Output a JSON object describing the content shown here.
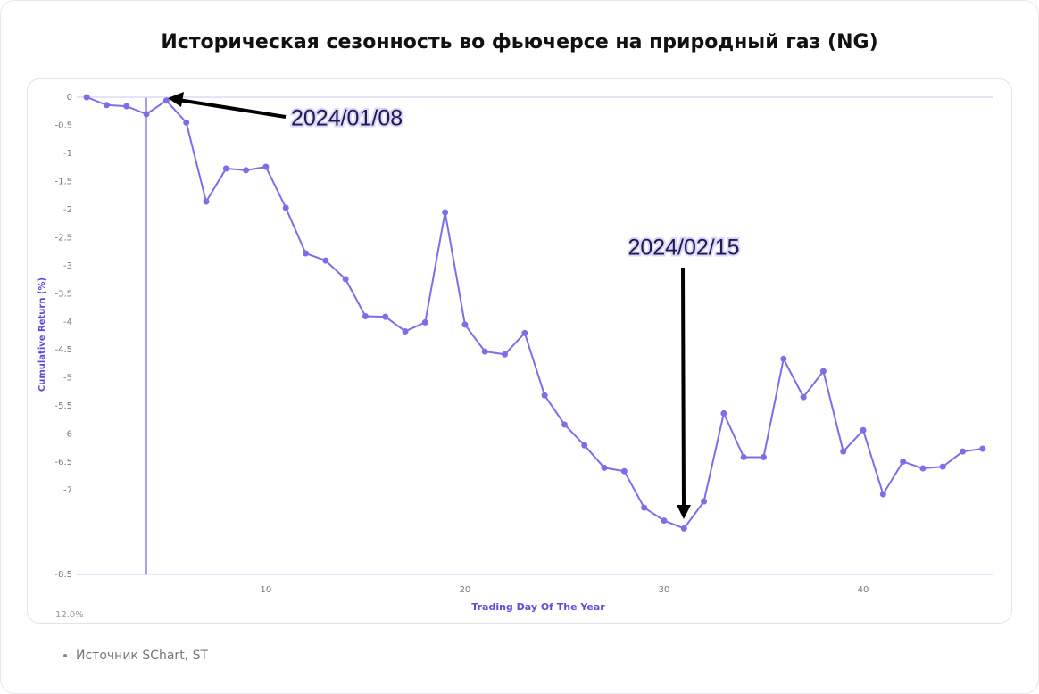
{
  "chart_data": {
    "type": "line",
    "title": "Историческая сезонность во фьючерсе на природный газ (NG)",
    "x_label": "Trading Day Of The Year",
    "y_label": "Cumulative Return (%)",
    "source": "Источник SChart, ST",
    "corner_label": "12.0%",
    "annotations": [
      "2024/01/08",
      "2024/02/15"
    ],
    "x": [
      1,
      2,
      3,
      4,
      5,
      6,
      7,
      8,
      9,
      10,
      11,
      12,
      13,
      14,
      15,
      16,
      17,
      18,
      19,
      20,
      21,
      22,
      23,
      24,
      25,
      26,
      27,
      28,
      29,
      30,
      31,
      32,
      33,
      34,
      35,
      36,
      37,
      38,
      39,
      40,
      41,
      42,
      43,
      44,
      45,
      46
    ],
    "series": [
      {
        "color": "#7b6fe8",
        "values": [
          0,
          -0.14,
          -0.16,
          -0.3,
          -0.06,
          -0.45,
          -1.86,
          -1.27,
          -1.3,
          -1.24,
          -1.97,
          -2.78,
          -2.91,
          -3.24,
          -3.9,
          -3.91,
          -4.17,
          -4.01,
          -2.05,
          -4.05,
          -4.53,
          -4.58,
          -4.2,
          -5.31,
          -5.83,
          -6.2,
          -6.6,
          -6.66,
          -7.31,
          -7.54,
          -7.68,
          -7.2,
          -5.63,
          -6.41,
          -6.41,
          -4.66,
          -5.34,
          -4.88,
          -6.31,
          -5.93,
          -7.07,
          -6.49,
          -6.61,
          -6.58,
          -6.31,
          -6.26
        ]
      }
    ],
    "xlim": [
      0.5,
      46.5
    ],
    "xticks": [
      10,
      20,
      30,
      40
    ],
    "ylim": [
      -8.5,
      0
    ],
    "yticks": [
      0,
      -0.5,
      -1,
      -1.5,
      -2,
      -2.5,
      -3,
      -3.5,
      -4,
      -4.5,
      -5,
      -5.5,
      -6,
      -6.5,
      -7,
      -8.5
    ]
  }
}
